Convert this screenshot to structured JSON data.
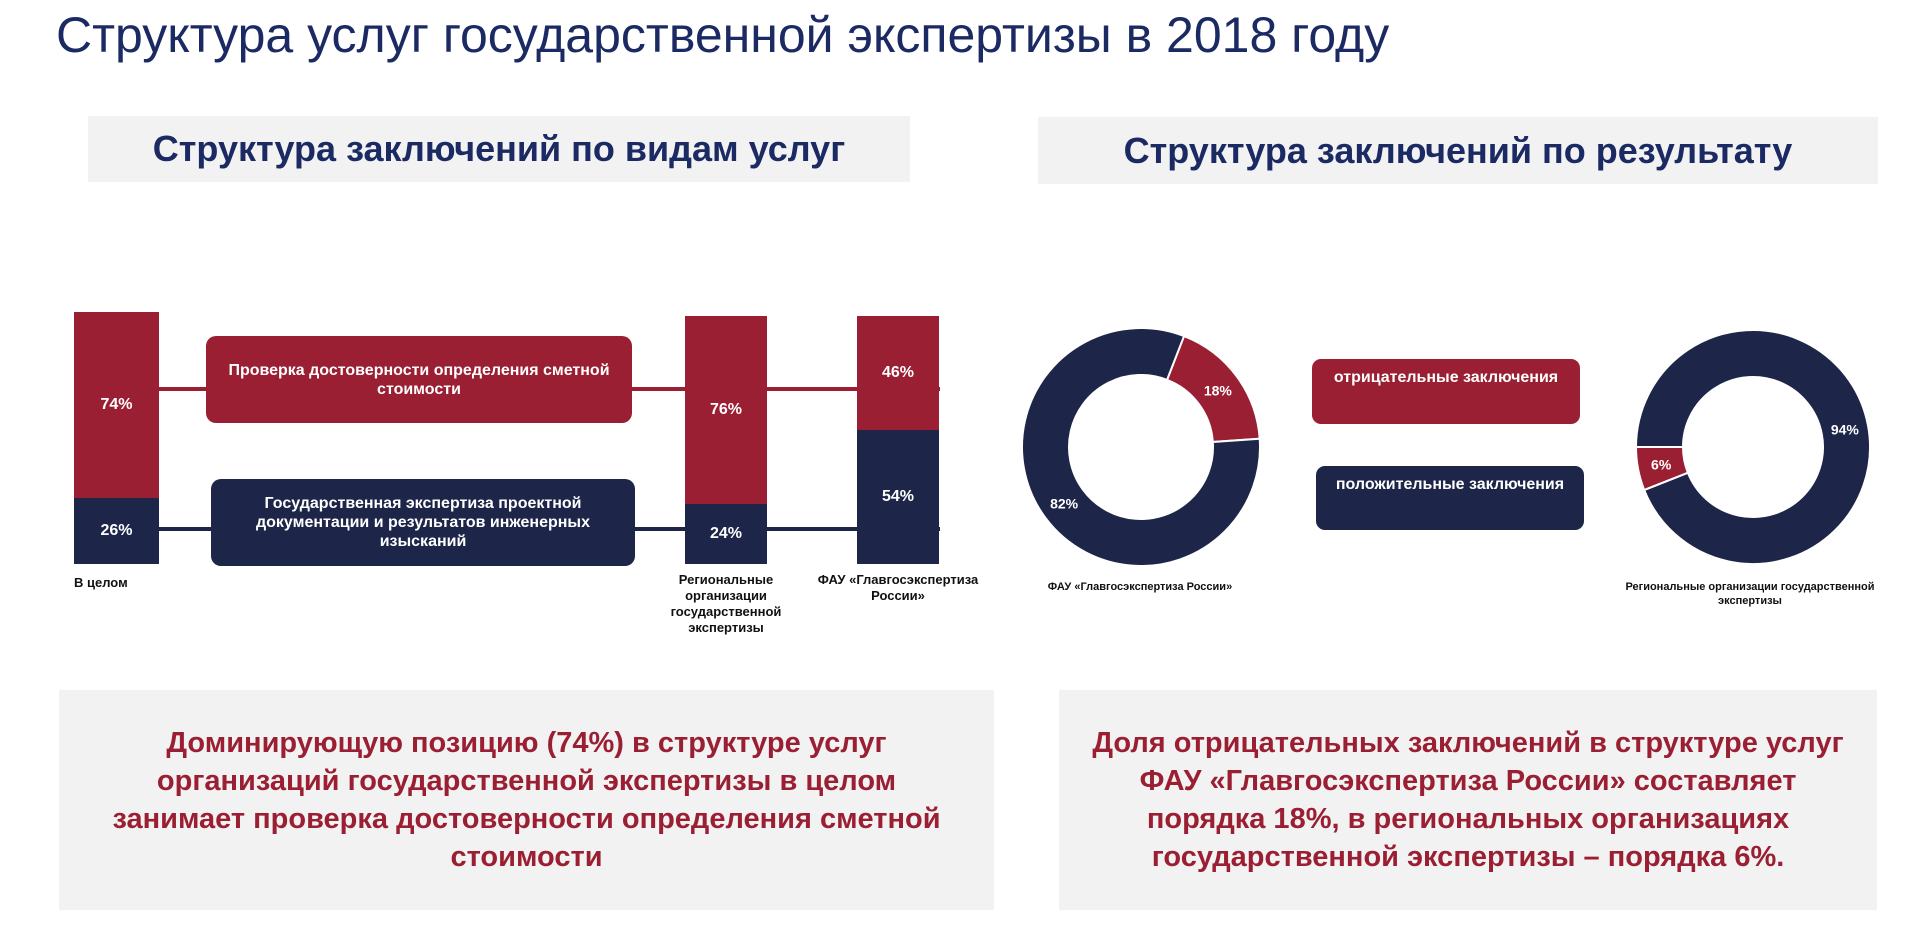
{
  "page": {
    "title": "Структура услуг государственной экспертизы в 2018 году"
  },
  "left_section": {
    "header": "Структура заключений по видам услуг",
    "conclusion": "Доминирующую позицию (74%) в структуре услуг организаций государственной экспертизы в целом занимает проверка достоверности определения сметной стоимости"
  },
  "right_section": {
    "header": "Структура заключений по результату",
    "conclusion": "Доля отрицательных заключений в структуре услуг ФАУ «Главгосэкспертиза России» составляет порядка 18%, в региональных организациях государственной экспертизы – порядка 6%."
  },
  "colors": {
    "red": "#9b1f33",
    "navy": "#1d2649",
    "title_blue": "#1b2a63",
    "panel_gray": "#f2f2f2"
  },
  "chart_data": [
    {
      "type": "bar",
      "stacked": true,
      "normalized": true,
      "categories": [
        "В целом",
        "Региональные организации государственной экспертизы",
        "ФАУ «Главгосэкспертиза России»"
      ],
      "series": [
        {
          "name": "Проверка достоверности определения сметной стоимости",
          "color": "#9b1f33",
          "values": [
            74,
            76,
            46
          ],
          "labels": [
            "74%",
            "76%",
            "46%"
          ]
        },
        {
          "name": "Государственная экспертиза проектной документации и результатов инженерных изысканий",
          "color": "#1d2649",
          "values": [
            26,
            24,
            54
          ],
          "labels": [
            "26%",
            "24%",
            "54%"
          ]
        }
      ],
      "ylim": [
        0,
        100
      ],
      "grid": false,
      "legend": "inline boxes between bars"
    },
    {
      "type": "pie",
      "donut": true,
      "caption": "ФАУ «Главгосэкспертиза России»",
      "slices": [
        {
          "name": "отрицательные заключения",
          "value": 18,
          "label": "18%",
          "color": "#9b1f33"
        },
        {
          "name": "положительные заключения",
          "value": 82,
          "label": "82%",
          "color": "#1d2649"
        }
      ]
    },
    {
      "type": "pie",
      "donut": true,
      "caption": "Региональные организации государственной экспертизы",
      "slices": [
        {
          "name": "отрицательные заключения",
          "value": 6,
          "label": "6%",
          "color": "#9b1f33"
        },
        {
          "name": "положительные заключения",
          "value": 94,
          "label": "94%",
          "color": "#1d2649"
        }
      ]
    }
  ]
}
